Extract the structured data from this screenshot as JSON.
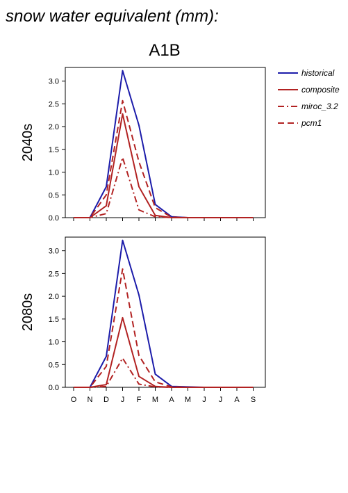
{
  "figure": {
    "title": "snow water equivalent (mm):",
    "scenario": "A1B"
  },
  "legend": [
    {
      "name": "historical",
      "color": "#1c1caa",
      "dash": "solid"
    },
    {
      "name": "composite",
      "color": "#b22222",
      "dash": "solid"
    },
    {
      "name": "miroc_3.2",
      "color": "#b22222",
      "dash": "dashdot"
    },
    {
      "name": "pcm1",
      "color": "#b22222",
      "dash": "dashed"
    }
  ],
  "chart_data": [
    {
      "type": "line",
      "panel_label": "2040s",
      "categories": [
        "O",
        "N",
        "D",
        "J",
        "F",
        "M",
        "A",
        "M",
        "J",
        "J",
        "A",
        "S"
      ],
      "ylim": [
        0,
        3.3
      ],
      "yticks": [
        0.0,
        0.5,
        1.0,
        1.5,
        2.0,
        2.5,
        3.0
      ],
      "yticklabels": [
        "0.0",
        "0.5",
        "1.0",
        "1.5",
        "2.0",
        "2.5",
        "3.0"
      ],
      "legend_position": "right",
      "series": [
        {
          "name": "historical",
          "values": [
            0,
            0,
            0.68,
            3.23,
            2.03,
            0.29,
            0.02,
            0,
            0,
            0,
            0,
            0
          ]
        },
        {
          "name": "composite",
          "values": [
            0,
            0,
            0.26,
            2.28,
            0.68,
            0.05,
            0,
            0,
            0,
            0,
            0,
            0
          ]
        },
        {
          "name": "miroc_3.2",
          "values": [
            0,
            0,
            0.09,
            1.32,
            0.17,
            0.02,
            0,
            0,
            0,
            0,
            0,
            0
          ]
        },
        {
          "name": "pcm1",
          "values": [
            0,
            0,
            0.5,
            2.57,
            1.23,
            0.22,
            0.01,
            0,
            0,
            0,
            0,
            0
          ]
        }
      ]
    },
    {
      "type": "line",
      "panel_label": "2080s",
      "categories": [
        "O",
        "N",
        "D",
        "J",
        "F",
        "M",
        "A",
        "M",
        "J",
        "J",
        "A",
        "S"
      ],
      "ylim": [
        0,
        3.3
      ],
      "yticks": [
        0.0,
        0.5,
        1.0,
        1.5,
        2.0,
        2.5,
        3.0
      ],
      "yticklabels": [
        "0.0",
        "0.5",
        "1.0",
        "1.5",
        "2.0",
        "2.5",
        "3.0"
      ],
      "series": [
        {
          "name": "historical",
          "values": [
            0,
            0,
            0.68,
            3.23,
            2.03,
            0.29,
            0.02,
            0.01,
            0,
            0,
            0,
            0
          ]
        },
        {
          "name": "composite",
          "values": [
            0,
            0,
            0.06,
            1.53,
            0.24,
            0.02,
            0,
            0,
            0,
            0,
            0,
            0
          ]
        },
        {
          "name": "miroc_3.2",
          "values": [
            0,
            0,
            0.02,
            0.64,
            0.07,
            0.01,
            0,
            0,
            0,
            0,
            0,
            0
          ]
        },
        {
          "name": "pcm1",
          "values": [
            0,
            0,
            0.46,
            2.6,
            0.7,
            0.12,
            0.01,
            0,
            0,
            0,
            0,
            0
          ]
        }
      ]
    }
  ]
}
